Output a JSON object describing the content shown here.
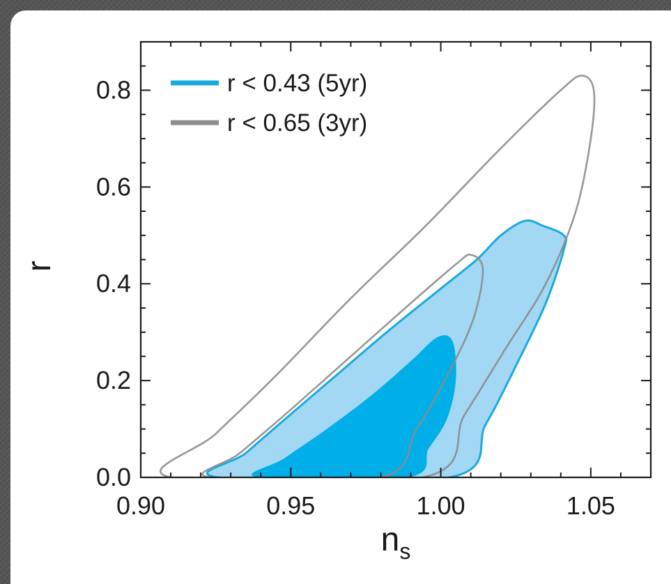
{
  "colors": {
    "five_year_outer_fill": "#a3d8f4",
    "five_year_inner_fill": "#00aee8",
    "five_year_line": "#17aade",
    "three_year_line": "#8c8c8c",
    "axis": "#1a1a1a"
  },
  "chart_data": {
    "type": "contour",
    "title": "",
    "xlabel": "n",
    "xlabel_subscript": "s",
    "ylabel": "r",
    "xlim": [
      0.9,
      1.07
    ],
    "ylim": [
      0.0,
      0.9
    ],
    "xticks": [
      0.9,
      0.95,
      1.0,
      1.05
    ],
    "xtick_labels": [
      "0.90",
      "0.95",
      "1.00",
      "1.05"
    ],
    "yticks": [
      0.0,
      0.2,
      0.4,
      0.6,
      0.8
    ],
    "ytick_labels": [
      "0.0",
      "0.2",
      "0.4",
      "0.6",
      "0.8"
    ],
    "grid": false,
    "legend_position": "top-left",
    "series": [
      {
        "name": "r < 0.43 (5yr)",
        "color": "#17aade",
        "contours": [
          {
            "level": "95%",
            "fill": "#a3d8f4",
            "points": [
              [
                0.926,
                0.0
              ],
              [
                0.935,
                0.05
              ],
              [
                0.948,
                0.12
              ],
              [
                0.965,
                0.21
              ],
              [
                0.982,
                0.3
              ],
              [
                1.0,
                0.39
              ],
              [
                1.012,
                0.45
              ],
              [
                1.02,
                0.5
              ],
              [
                1.028,
                0.53
              ],
              [
                1.034,
                0.52
              ],
              [
                1.041,
                0.5
              ],
              [
                1.041,
                0.47
              ],
              [
                1.035,
                0.36
              ],
              [
                1.025,
                0.23
              ],
              [
                1.015,
                0.11
              ],
              [
                1.003,
                0.0
              ]
            ]
          },
          {
            "level": "68%",
            "fill": "#00aee8",
            "points": [
              [
                0.939,
                0.0
              ],
              [
                0.948,
                0.04
              ],
              [
                0.962,
                0.1
              ],
              [
                0.977,
                0.17
              ],
              [
                0.99,
                0.24
              ],
              [
                0.999,
                0.29
              ],
              [
                1.004,
                0.28
              ],
              [
                1.005,
                0.2
              ],
              [
                1.002,
                0.12
              ],
              [
                0.996,
                0.06
              ],
              [
                0.989,
                0.0
              ]
            ]
          }
        ]
      },
      {
        "name": "r < 0.65 (3yr)",
        "color": "#8c8c8c",
        "contours": [
          {
            "level": "95%",
            "points": [
              [
                0.91,
                0.0
              ],
              [
                0.925,
                0.09
              ],
              [
                0.945,
                0.21
              ],
              [
                0.97,
                0.37
              ],
              [
                0.995,
                0.52
              ],
              [
                1.02,
                0.68
              ],
              [
                1.04,
                0.8
              ],
              [
                1.047,
                0.83
              ],
              [
                1.051,
                0.8
              ],
              [
                1.05,
                0.7
              ],
              [
                1.045,
                0.55
              ],
              [
                1.035,
                0.4
              ],
              [
                1.022,
                0.27
              ],
              [
                1.008,
                0.13
              ],
              [
                0.994,
                0.0
              ]
            ]
          },
          {
            "level": "68%",
            "points": [
              [
                0.923,
                0.0
              ],
              [
                0.933,
                0.05
              ],
              [
                0.95,
                0.14
              ],
              [
                0.97,
                0.25
              ],
              [
                0.99,
                0.36
              ],
              [
                1.005,
                0.44
              ],
              [
                1.01,
                0.46
              ],
              [
                1.014,
                0.43
              ],
              [
                1.011,
                0.33
              ],
              [
                1.003,
                0.22
              ],
              [
                0.992,
                0.1
              ],
              [
                0.98,
                0.0
              ]
            ]
          }
        ]
      }
    ]
  }
}
